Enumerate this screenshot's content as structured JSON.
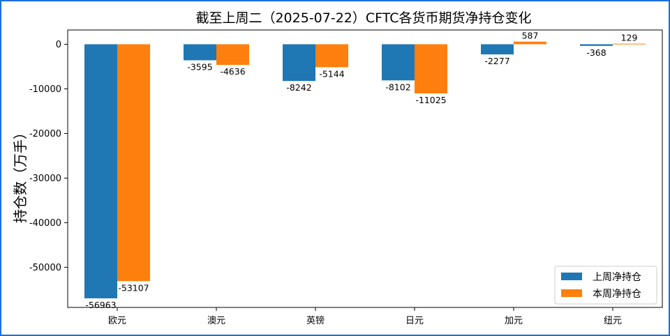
{
  "chart_data": {
    "type": "bar",
    "title": "截至上周二（2025-07-22）CFTC各货币期货净持仓变化",
    "xlabel": "",
    "ylabel": "持仓数（万手）",
    "categories": [
      "欧元",
      "澳元",
      "英镑",
      "日元",
      "加元",
      "纽元"
    ],
    "series": [
      {
        "name": "上周净持仓",
        "color": "#1f77b4",
        "values": [
          -56963,
          -3595,
          -8242,
          -8102,
          -2277,
          -368
        ]
      },
      {
        "name": "本周净持仓",
        "color": "#ff7f0e",
        "values": [
          -53107,
          -4636,
          -5144,
          -11025,
          587,
          129
        ]
      }
    ],
    "ylim": [
      -59000,
      3200
    ],
    "yticks": [
      0,
      -10000,
      -20000,
      -30000,
      -40000,
      -50000
    ],
    "grid": false,
    "legend_position": "bottom-right",
    "data_labels": true
  }
}
